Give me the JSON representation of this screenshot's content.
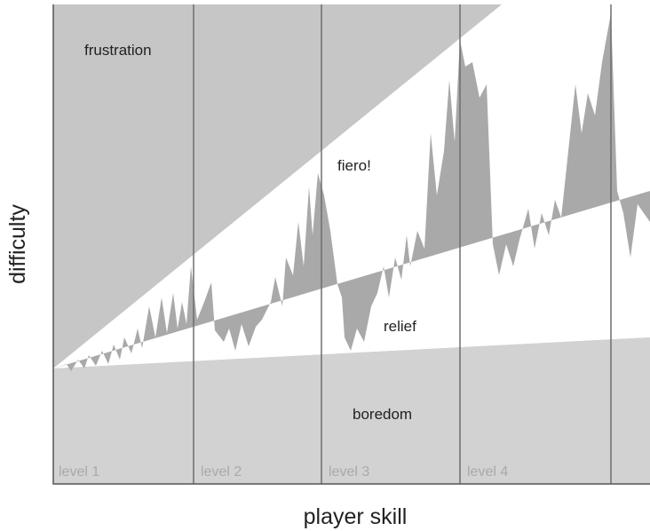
{
  "regions": {
    "frustration": "frustration",
    "fiero": "fiero!",
    "relief": "relief",
    "boredom": "boredom"
  },
  "levels": [
    "level 1",
    "level 2",
    "level 3",
    "level 4"
  ],
  "axes": {
    "y_label": "difficulty",
    "x_label": "player skill"
  }
}
